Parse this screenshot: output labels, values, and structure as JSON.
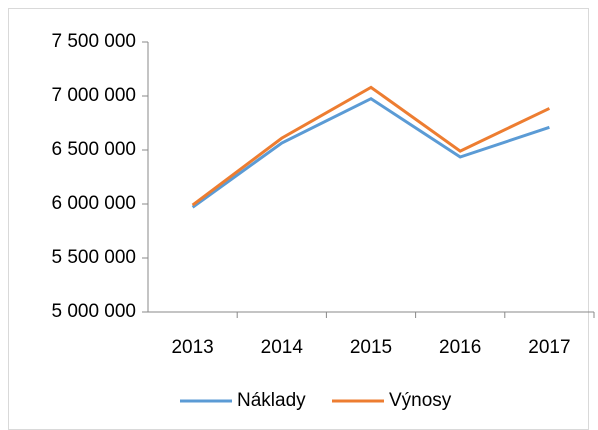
{
  "chart_data": {
    "type": "line",
    "categories": [
      "2013",
      "2014",
      "2015",
      "2016",
      "2017"
    ],
    "series": [
      {
        "name": "Náklady",
        "color": "#5b9bd5",
        "values": [
          5970000,
          6565000,
          6975000,
          6435000,
          6710000
        ]
      },
      {
        "name": "Výnosy",
        "color": "#ed7d31",
        "values": [
          5990000,
          6610000,
          7080000,
          6490000,
          6885000
        ]
      }
    ],
    "ylim": [
      5000000,
      7500000
    ],
    "yticks": [
      {
        "value": 5000000,
        "label": "5 000 000"
      },
      {
        "value": 5500000,
        "label": "5 500 000"
      },
      {
        "value": 6000000,
        "label": "6 000 000"
      },
      {
        "value": 6500000,
        "label": "6 500 000"
      },
      {
        "value": 7000000,
        "label": "7 000 000"
      },
      {
        "value": 7500000,
        "label": "7 500 000"
      }
    ],
    "legend": "bottom"
  }
}
